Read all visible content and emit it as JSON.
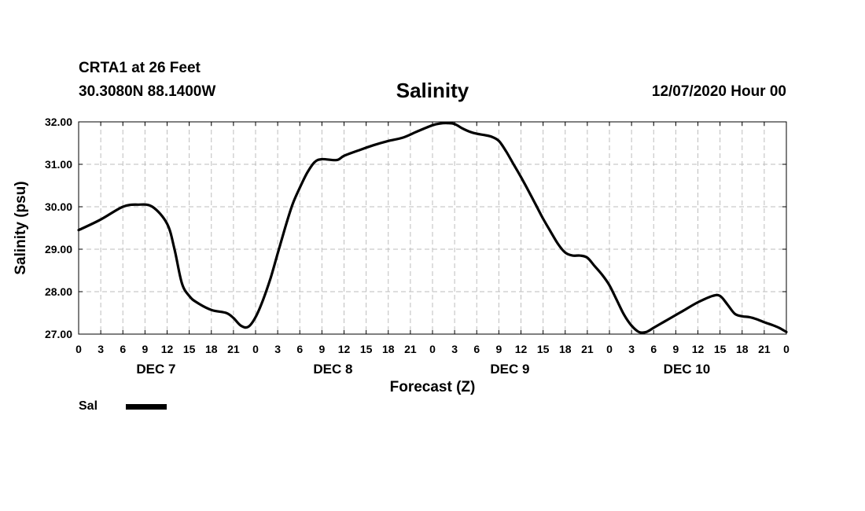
{
  "header": {
    "station": "CRTA1 at 26 Feet",
    "coords": "30.3080N 88.1400W",
    "title": "Salinity",
    "runtime": "12/07/2020 Hour 00"
  },
  "chart_data": {
    "type": "line",
    "title": "Salinity",
    "xlabel": "Forecast (Z)",
    "ylabel": "Salinity (psu)",
    "ylim": [
      27.0,
      32.0
    ],
    "yticks": [
      "27.00",
      "28.00",
      "29.00",
      "30.00",
      "31.00",
      "32.00"
    ],
    "xlim": [
      0,
      96
    ],
    "x_tick_step_hours": 3,
    "x_tick_labels": [
      "0",
      "3",
      "6",
      "9",
      "12",
      "15",
      "18",
      "21",
      "0",
      "3",
      "6",
      "9",
      "12",
      "15",
      "18",
      "21",
      "0",
      "3",
      "6",
      "9",
      "12",
      "15",
      "18",
      "21",
      "0",
      "3",
      "6",
      "9",
      "12",
      "15",
      "18",
      "21",
      "0"
    ],
    "day_labels": [
      "DEC 7",
      "DEC 8",
      "DEC 9",
      "DEC 10"
    ],
    "grid": true,
    "legend_position": "bottom-left",
    "series": [
      {
        "name": "Sal",
        "color": "#000000",
        "x": [
          0,
          3,
          6,
          8,
          10,
          12,
          13,
          14,
          15,
          16,
          18,
          20,
          21,
          22,
          23,
          24,
          25,
          26,
          27,
          28,
          29,
          30,
          31,
          32,
          33,
          35,
          36,
          38,
          40,
          42,
          44,
          46,
          48,
          49,
          50,
          51,
          52,
          53,
          54,
          55,
          56,
          57,
          58,
          59,
          60,
          61,
          62,
          63,
          64,
          65,
          66,
          67,
          68,
          69,
          70,
          71,
          72,
          73,
          74,
          75,
          76,
          77,
          78,
          79,
          80,
          82,
          84,
          86,
          87,
          88,
          89,
          90,
          91,
          92,
          93,
          94,
          95,
          96
        ],
        "values": [
          29.45,
          29.7,
          30.0,
          30.05,
          30.0,
          29.6,
          29.0,
          28.2,
          27.9,
          27.75,
          27.57,
          27.5,
          27.38,
          27.2,
          27.17,
          27.4,
          27.8,
          28.3,
          28.9,
          29.5,
          30.05,
          30.45,
          30.8,
          31.05,
          31.12,
          31.1,
          31.2,
          31.33,
          31.45,
          31.55,
          31.63,
          31.78,
          31.92,
          31.96,
          31.97,
          31.95,
          31.85,
          31.77,
          31.72,
          31.69,
          31.65,
          31.55,
          31.3,
          31.0,
          30.7,
          30.38,
          30.05,
          29.72,
          29.42,
          29.13,
          28.92,
          28.85,
          28.85,
          28.8,
          28.6,
          28.4,
          28.15,
          27.8,
          27.45,
          27.2,
          27.05,
          27.05,
          27.15,
          27.25,
          27.35,
          27.55,
          27.75,
          27.9,
          27.9,
          27.7,
          27.48,
          27.42,
          27.4,
          27.35,
          27.28,
          27.22,
          27.15,
          27.05
        ]
      }
    ]
  },
  "legend": {
    "label": "Sal",
    "color": "#000000"
  }
}
